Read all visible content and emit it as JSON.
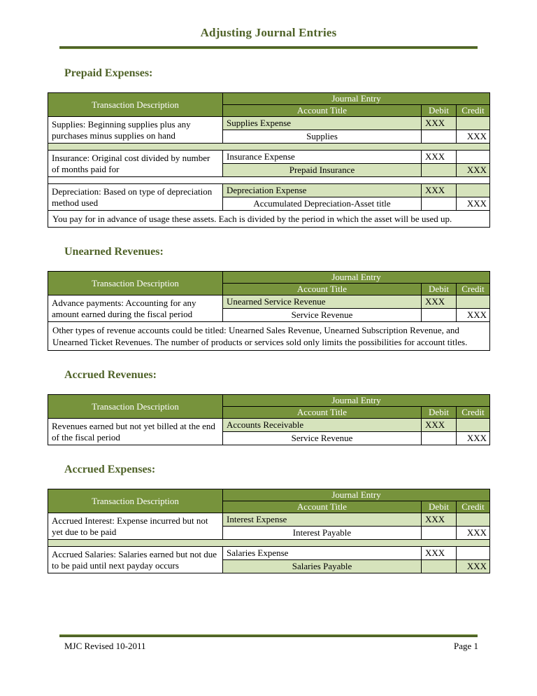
{
  "page": {
    "title": "Adjusting Journal Entries",
    "footer": {
      "left": "MJC Revised 10-2011",
      "right": "Page 1"
    }
  },
  "colors": {
    "heading_text": "#4f6228",
    "table_header_bg": "#77933c",
    "table_header_text": "#ffffff",
    "row_band": "#d6e3bc",
    "rule": "#4f6228",
    "body_text": "#000000"
  },
  "labels": {
    "transaction_description": "Transaction Description",
    "journal_entry": "Journal Entry",
    "account_title": "Account Title",
    "debit": "Debit",
    "credit": "Credit"
  },
  "sections": [
    {
      "id": "prepaid-expenses",
      "heading": "Prepaid Expenses:",
      "entries": [
        {
          "description": "Supplies: Beginning supplies plus any purchases minus supplies on hand",
          "debit_account": "Supplies Expense",
          "debit_amount": "XXX",
          "credit_account": "Supplies",
          "credit_amount": "XXX"
        },
        {
          "description": "Insurance: Original cost divided by number of months paid for",
          "debit_account": "Insurance Expense",
          "debit_amount": "XXX",
          "credit_account": "Prepaid Insurance",
          "credit_amount": "XXX"
        },
        {
          "description": "Depreciation: Based on type of depreciation method used",
          "debit_account": "Depreciation Expense",
          "debit_amount": "XXX",
          "credit_account": "Accumulated Depreciation-Asset title",
          "credit_amount": "XXX"
        }
      ],
      "note": "You pay for in advance of usage these assets. Each is divided by the period in which the asset will be used up."
    },
    {
      "id": "unearned-revenues",
      "heading": "Unearned Revenues:",
      "entries": [
        {
          "description": "Advance payments: Accounting for any amount earned during the fiscal period",
          "debit_account": "Unearned Service Revenue",
          "debit_amount": "XXX",
          "credit_account": "Service Revenue",
          "credit_amount": "XXX"
        }
      ],
      "note": "Other types of revenue accounts could be titled: Unearned Sales Revenue, Unearned Subscription Revenue, and Unearned Ticket Revenues.  The number of products or services sold only limits the possibilities for account titles."
    },
    {
      "id": "accrued-revenues",
      "heading": "Accrued Revenues:",
      "entries": [
        {
          "description": "Revenues earned but not yet billed at the end of the fiscal period",
          "debit_account": "Accounts Receivable",
          "debit_amount": "XXX",
          "credit_account": "Service Revenue",
          "credit_amount": "XXX"
        }
      ],
      "note": null
    },
    {
      "id": "accrued-expenses",
      "heading": "Accrued Expenses:",
      "entries": [
        {
          "description": "Accrued Interest: Expense incurred but not yet due to be paid",
          "debit_account": "Interest Expense",
          "debit_amount": "XXX",
          "credit_account": "Interest Payable",
          "credit_amount": "XXX"
        },
        {
          "description": "Accrued Salaries: Salaries earned but not due to be paid until next payday occurs",
          "debit_account": "Salaries Expense",
          "debit_amount": "XXX",
          "credit_account": "Salaries Payable",
          "credit_amount": "XXX"
        }
      ],
      "note": null
    }
  ]
}
